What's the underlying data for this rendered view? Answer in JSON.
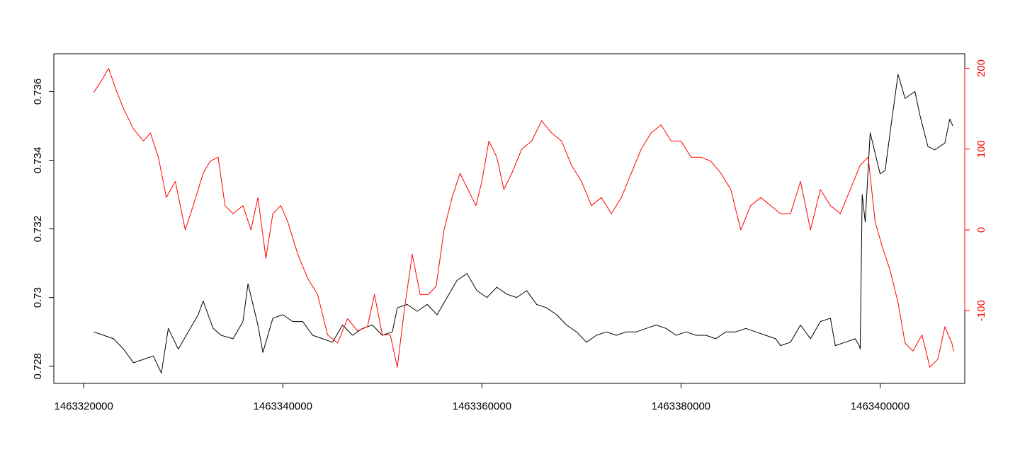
{
  "chart_data": {
    "type": "line",
    "title": "",
    "xlabel": "",
    "ylabel": "",
    "y2label": "",
    "xlim": [
      1463317000,
      1463408500
    ],
    "ylim": [
      0.7275,
      0.7371
    ],
    "y2lim": [
      -190,
      218
    ],
    "x_ticks": [
      1463320000,
      1463340000,
      1463360000,
      1463380000,
      1463400000
    ],
    "x_tick_labels": [
      "1463320000",
      "1463340000",
      "1463360000",
      "1463380000",
      "1463400000"
    ],
    "y_ticks": [
      0.728,
      0.73,
      0.732,
      0.734,
      0.736
    ],
    "y_tick_labels": [
      "0.728",
      "0.73",
      "0.732",
      "0.734",
      "0.736"
    ],
    "y2_ticks": [
      -100,
      0,
      100,
      200
    ],
    "y2_tick_labels": [
      "-100",
      "0",
      "100",
      "200"
    ],
    "grid": false,
    "legend": "none",
    "colors": {
      "primary": "#000000",
      "secondary": "#ff0000"
    },
    "series": [
      {
        "axis": "left",
        "color": "#000000",
        "x": [
          1463321000,
          1463322000,
          1463323000,
          1463324000,
          1463325000,
          1463326000,
          1463327000,
          1463327800,
          1463328500,
          1463329500,
          1463330500,
          1463331500,
          1463332000,
          1463333000,
          1463333800,
          1463335000,
          1463336000,
          1463336500,
          1463337500,
          1463338000,
          1463339000,
          1463340000,
          1463341000,
          1463342000,
          1463343000,
          1463344000,
          1463345000,
          1463346000,
          1463347000,
          1463348000,
          1463349000,
          1463350000,
          1463351000,
          1463351500,
          1463352500,
          1463353500,
          1463354500,
          1463355500,
          1463356500,
          1463357500,
          1463358500,
          1463359500,
          1463360500,
          1463361500,
          1463362500,
          1463363500,
          1463364500,
          1463365500,
          1463366500,
          1463367500,
          1463368500,
          1463369500,
          1463370500,
          1463371500,
          1463372500,
          1463373500,
          1463374500,
          1463375500,
          1463376500,
          1463377500,
          1463378500,
          1463379500,
          1463380500,
          1463381500,
          1463382500,
          1463383500,
          1463384500,
          1463385500,
          1463386500,
          1463387500,
          1463388500,
          1463389500,
          1463390000,
          1463391000,
          1463392000,
          1463393000,
          1463394000,
          1463395000,
          1463395500,
          1463396500,
          1463397500,
          1463397900,
          1463398000,
          1463398200,
          1463398500,
          1463399000,
          1463399500,
          1463400000,
          1463400500,
          1463401000,
          1463401800,
          1463402500,
          1463403500,
          1463404000,
          1463404800,
          1463405500,
          1463406500,
          1463407000,
          1463407300
        ],
        "y": [
          0.729,
          0.7289,
          0.7288,
          0.7285,
          0.7281,
          0.7282,
          0.7283,
          0.7278,
          0.7291,
          0.7285,
          0.729,
          0.7295,
          0.7299,
          0.7291,
          0.7289,
          0.7288,
          0.7293,
          0.7304,
          0.7292,
          0.7284,
          0.7294,
          0.7295,
          0.7293,
          0.7293,
          0.7289,
          0.7288,
          0.7287,
          0.7292,
          0.7289,
          0.7291,
          0.7292,
          0.7289,
          0.729,
          0.7297,
          0.7298,
          0.7296,
          0.7298,
          0.7295,
          0.73,
          0.7305,
          0.7307,
          0.7302,
          0.73,
          0.7303,
          0.7301,
          0.73,
          0.7302,
          0.7298,
          0.7297,
          0.7295,
          0.7292,
          0.729,
          0.7287,
          0.7289,
          0.729,
          0.7289,
          0.729,
          0.729,
          0.7291,
          0.7292,
          0.7291,
          0.7289,
          0.729,
          0.7289,
          0.7289,
          0.7288,
          0.729,
          0.729,
          0.7291,
          0.729,
          0.7289,
          0.7288,
          0.7286,
          0.7287,
          0.7292,
          0.7288,
          0.7293,
          0.7294,
          0.7286,
          0.7287,
          0.7288,
          0.7286,
          0.7285,
          0.733,
          0.7322,
          0.7348,
          0.7342,
          0.7336,
          0.7337,
          0.7348,
          0.7365,
          0.7358,
          0.736,
          0.7353,
          0.7344,
          0.7343,
          0.7345,
          0.7352,
          0.735
        ]
      },
      {
        "axis": "right",
        "color": "#ff0000",
        "x": [
          1463321000,
          1463321800,
          1463322500,
          1463323200,
          1463324000,
          1463325000,
          1463326000,
          1463326700,
          1463327500,
          1463328300,
          1463329200,
          1463330200,
          1463331000,
          1463332000,
          1463332700,
          1463333500,
          1463334200,
          1463335000,
          1463336000,
          1463336800,
          1463337500,
          1463338300,
          1463339000,
          1463339800,
          1463340500,
          1463341500,
          1463342500,
          1463343500,
          1463344500,
          1463345500,
          1463346500,
          1463347500,
          1463348500,
          1463349200,
          1463350000,
          1463350800,
          1463351500,
          1463352200,
          1463353000,
          1463353800,
          1463354600,
          1463355400,
          1463356200,
          1463357000,
          1463357800,
          1463358600,
          1463359400,
          1463360000,
          1463360700,
          1463361500,
          1463362200,
          1463363000,
          1463364000,
          1463365000,
          1463366000,
          1463367000,
          1463368000,
          1463369000,
          1463370000,
          1463371000,
          1463372000,
          1463373000,
          1463374000,
          1463375000,
          1463376000,
          1463377000,
          1463378000,
          1463379000,
          1463380000,
          1463381000,
          1463382000,
          1463383000,
          1463384000,
          1463385000,
          1463386000,
          1463387000,
          1463388000,
          1463389000,
          1463390000,
          1463391000,
          1463392000,
          1463393000,
          1463394000,
          1463395000,
          1463396000,
          1463397000,
          1463398000,
          1463398800,
          1463399500,
          1463400200,
          1463401000,
          1463401800,
          1463402500,
          1463403300,
          1463404200,
          1463405000,
          1463405800,
          1463406500,
          1463407200,
          1463407400
        ],
        "y": [
          170,
          185,
          200,
          175,
          150,
          125,
          110,
          120,
          90,
          40,
          60,
          0,
          30,
          70,
          85,
          90,
          30,
          20,
          30,
          0,
          40,
          -35,
          20,
          30,
          10,
          -30,
          -60,
          -80,
          -130,
          -140,
          -110,
          -125,
          -120,
          -80,
          -130,
          -130,
          -170,
          -100,
          -30,
          -80,
          -80,
          -70,
          0,
          40,
          70,
          50,
          30,
          60,
          110,
          90,
          50,
          70,
          100,
          110,
          135,
          120,
          110,
          80,
          60,
          30,
          40,
          20,
          40,
          70,
          100,
          120,
          130,
          110,
          110,
          90,
          90,
          85,
          70,
          50,
          0,
          30,
          40,
          30,
          20,
          20,
          60,
          0,
          50,
          30,
          20,
          50,
          80,
          90,
          10,
          -20,
          -50,
          -90,
          -140,
          -150,
          -130,
          -170,
          -160,
          -120,
          -140,
          -150
        ]
      }
    ]
  }
}
